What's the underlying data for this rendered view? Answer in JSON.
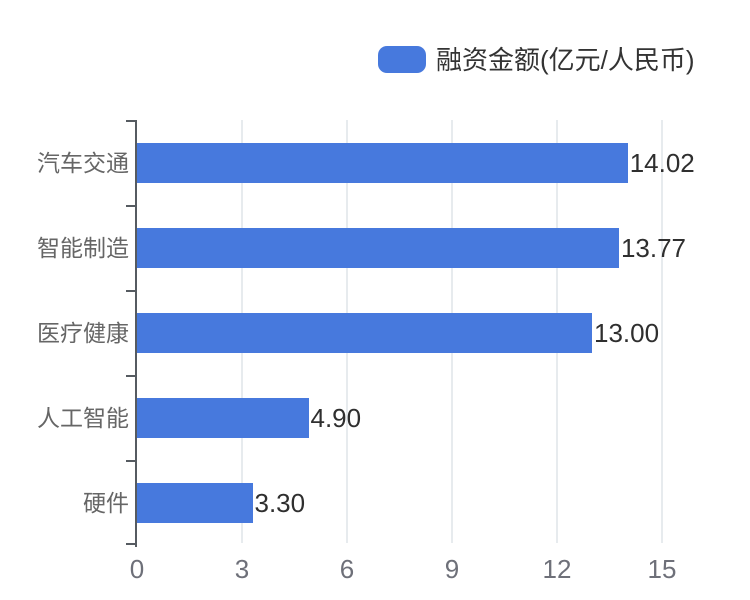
{
  "page": {
    "background": "#ffffff"
  },
  "legend": {
    "label": "融资金额(亿元/人民币)",
    "marker_color": "#4779dd",
    "text_color": "#333333"
  },
  "chart_data": {
    "type": "bar",
    "orientation": "horizontal",
    "title": "",
    "xlabel": "",
    "ylabel": "",
    "categories": [
      "汽车交通",
      "智能制造",
      "医疗健康",
      "人工智能",
      "硬件"
    ],
    "values": [
      14.02,
      13.77,
      13.0,
      4.9,
      3.3
    ],
    "value_labels": [
      "14.02",
      "13.77",
      "13.00",
      "4.90",
      "3.30"
    ],
    "series": [
      {
        "name": "融资金额(亿元/人民币)",
        "values": [
          14.02,
          13.77,
          13.0,
          4.9,
          3.3
        ]
      }
    ],
    "xlim": [
      0,
      15
    ],
    "x_ticks": [
      "0",
      "3",
      "6",
      "9",
      "12",
      "15"
    ],
    "x_tick_values": [
      0,
      3,
      6,
      9,
      12,
      15
    ],
    "grid": true,
    "legend_position": "top",
    "colors": {
      "bar": "#4779dd",
      "gridline": "#e7ebee",
      "axis": "#565b61",
      "category_label": "#666666",
      "tick_label": "#6e7079",
      "value_label": "#2f2f2f"
    }
  }
}
